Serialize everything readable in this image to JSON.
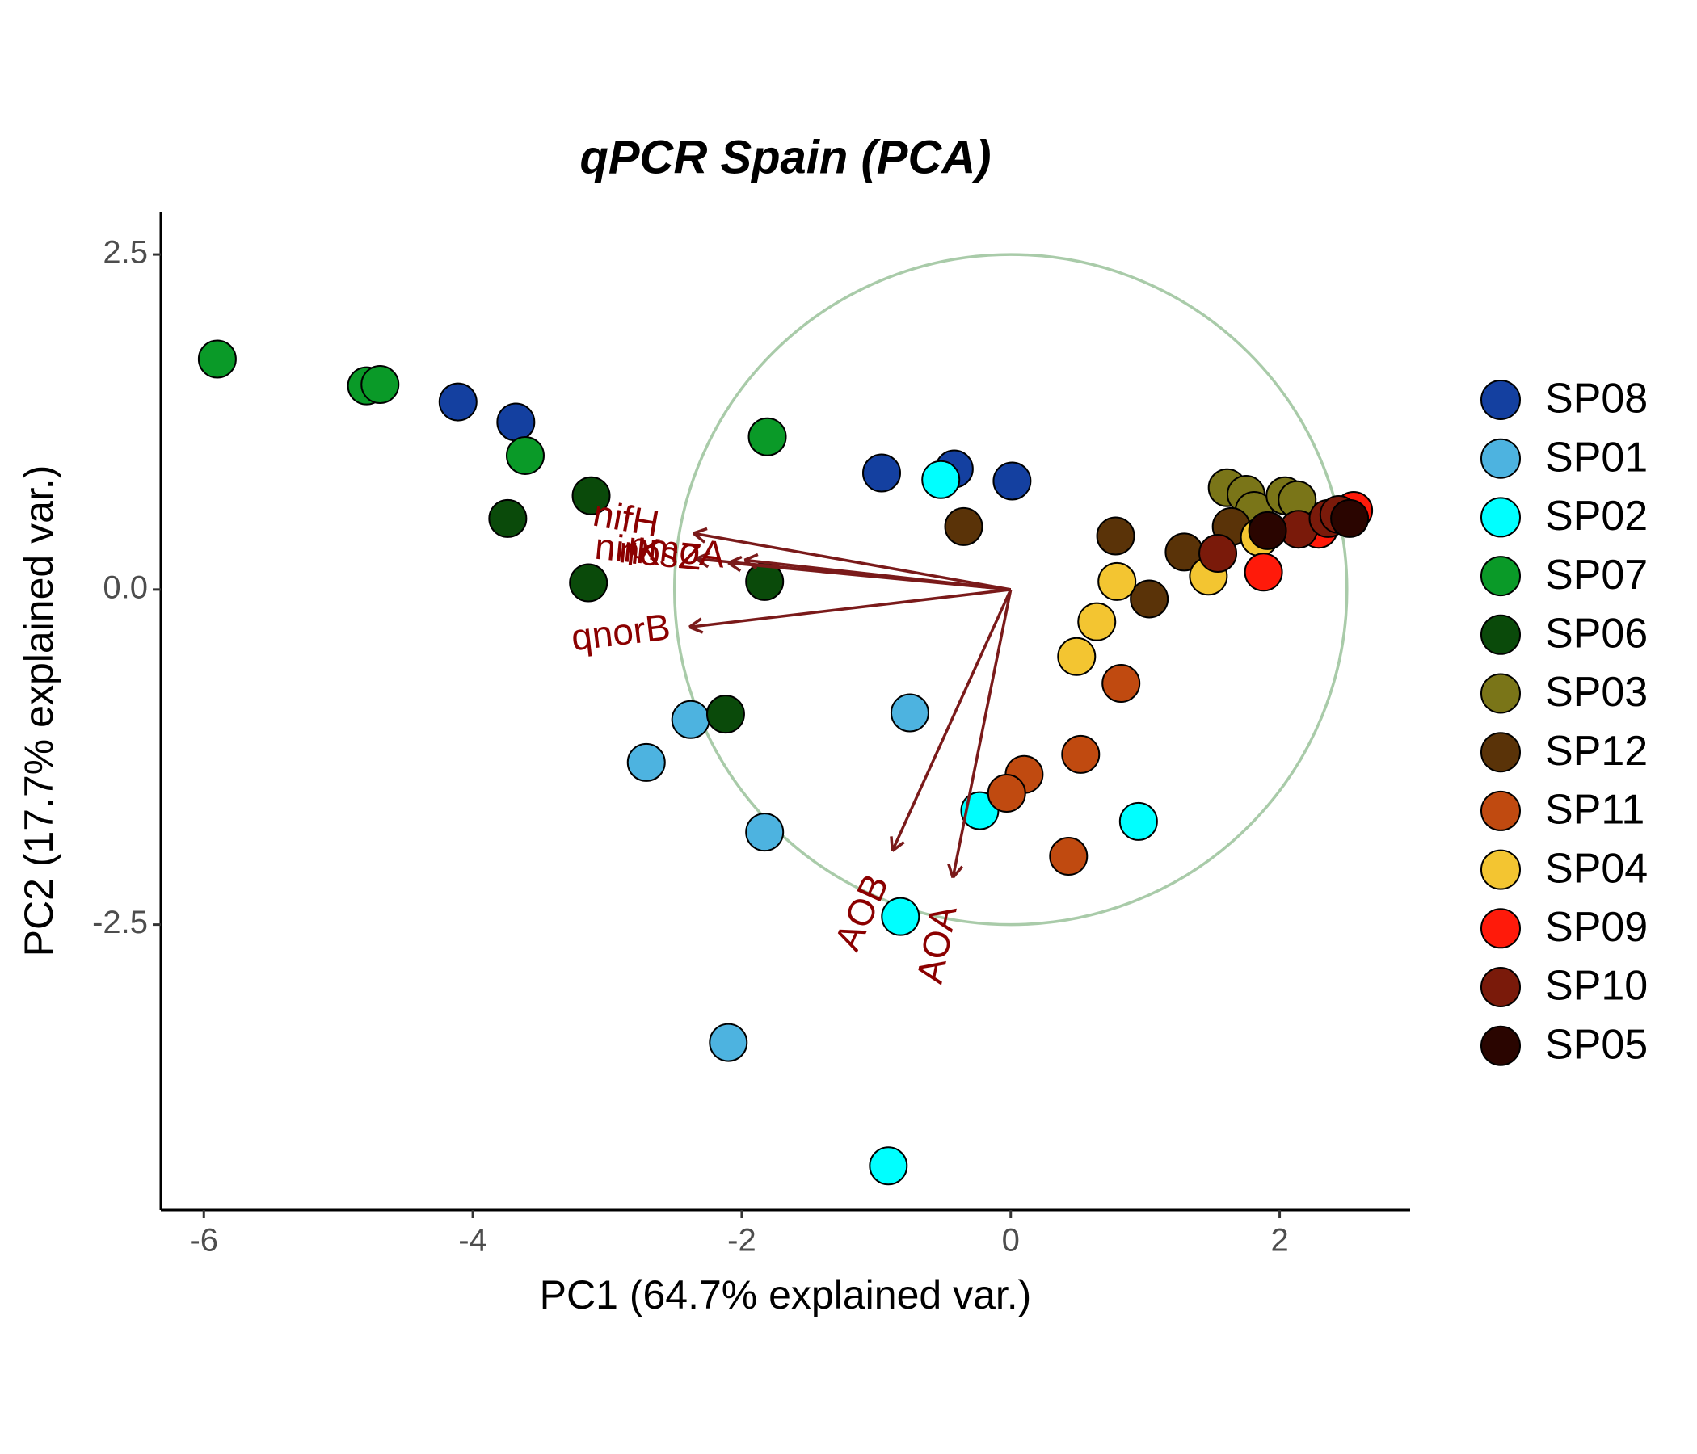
{
  "chart_data": {
    "type": "scatter",
    "title": "qPCR Spain (PCA)",
    "x_label": "PC1 (64.7% explained var.)",
    "y_label": "PC2 (17.7% explained var.)",
    "xlim": [
      -6.32,
      2.97
    ],
    "ylim": [
      -4.63,
      2.82
    ],
    "xticks": [
      -6,
      -4,
      -2,
      0,
      2
    ],
    "yticks": [
      -2.5,
      {
        "value": 0,
        "label": "0.0"
      },
      2.5
    ],
    "correlation_circle_radius": 2.5,
    "circle_color": "#a9cba9",
    "arrow_color": "#7a1a1a",
    "series": [
      {
        "name": "SP08",
        "color": "#1440a0",
        "x": [
          -4.11,
          -3.68,
          -0.96,
          -0.42,
          0.01
        ],
        "y": [
          1.4,
          1.25,
          0.87,
          0.9,
          0.81
        ]
      },
      {
        "name": "SP01",
        "color": "#4db3e0",
        "x": [
          -2.38,
          -2.71,
          -0.75,
          -1.83,
          -2.1
        ],
        "y": [
          -0.97,
          -1.29,
          -0.92,
          -1.81,
          -3.38
        ]
      },
      {
        "name": "SP02",
        "color": "#00ffff",
        "x": [
          -0.52,
          -0.23,
          0.95,
          -0.82,
          -0.91
        ],
        "y": [
          0.82,
          -1.65,
          -1.73,
          -2.44,
          -4.3
        ]
      },
      {
        "name": "SP07",
        "color": "#0a9a28",
        "x": [
          -5.9,
          -4.79,
          -4.69,
          -3.61,
          -1.81
        ],
        "y": [
          1.72,
          1.52,
          1.53,
          1.0,
          1.14
        ]
      },
      {
        "name": "SP06",
        "color": "#0a4a0a",
        "x": [
          -3.12,
          -3.74,
          -3.14,
          -1.83,
          -2.12
        ],
        "y": [
          0.7,
          0.53,
          0.05,
          0.06,
          -0.93
        ]
      },
      {
        "name": "SP03",
        "color": "#7a7518",
        "x": [
          1.61,
          1.75,
          1.81,
          2.04,
          2.13
        ],
        "y": [
          0.76,
          0.71,
          0.59,
          0.7,
          0.67
        ]
      },
      {
        "name": "SP12",
        "color": "#5a3308",
        "x": [
          -0.35,
          0.78,
          1.03,
          1.29,
          1.64
        ],
        "y": [
          0.47,
          0.4,
          -0.07,
          0.28,
          0.47
        ]
      },
      {
        "name": "SP11",
        "color": "#c04a10",
        "x": [
          0.82,
          0.52,
          0.1,
          -0.03,
          0.43
        ],
        "y": [
          -0.7,
          -1.23,
          -1.38,
          -1.52,
          -1.99
        ]
      },
      {
        "name": "SP04",
        "color": "#f3c531",
        "x": [
          0.79,
          0.64,
          0.49,
          1.47,
          1.85
        ],
        "y": [
          0.06,
          -0.24,
          -0.5,
          0.1,
          0.39
        ]
      },
      {
        "name": "SP09",
        "color": "#ff1a0a",
        "x": [
          1.88,
          2.29,
          2.55
        ],
        "y": [
          0.13,
          0.45,
          0.59
        ]
      },
      {
        "name": "SP10",
        "color": "#7a1a0a",
        "x": [
          1.54,
          2.14,
          2.36,
          2.44
        ],
        "y": [
          0.27,
          0.45,
          0.53,
          0.56
        ]
      },
      {
        "name": "SP05",
        "color": "#2a0500",
        "x": [
          1.91,
          2.52
        ],
        "y": [
          0.44,
          0.53
        ]
      }
    ],
    "loadings": [
      {
        "name": "nifH",
        "x": -2.36,
        "y": 0.42
      },
      {
        "name": "nirK",
        "x": -2.34,
        "y": 0.23
      },
      {
        "name": "nosZ",
        "x": -2.1,
        "y": 0.2
      },
      {
        "name": "pmoA",
        "x": -1.98,
        "y": 0.22
      },
      {
        "name": "qnorB",
        "x": -2.39,
        "y": -0.28
      },
      {
        "name": "AOB",
        "x": -0.88,
        "y": -1.95
      },
      {
        "name": "AOA",
        "x": -0.43,
        "y": -2.15
      }
    ]
  }
}
